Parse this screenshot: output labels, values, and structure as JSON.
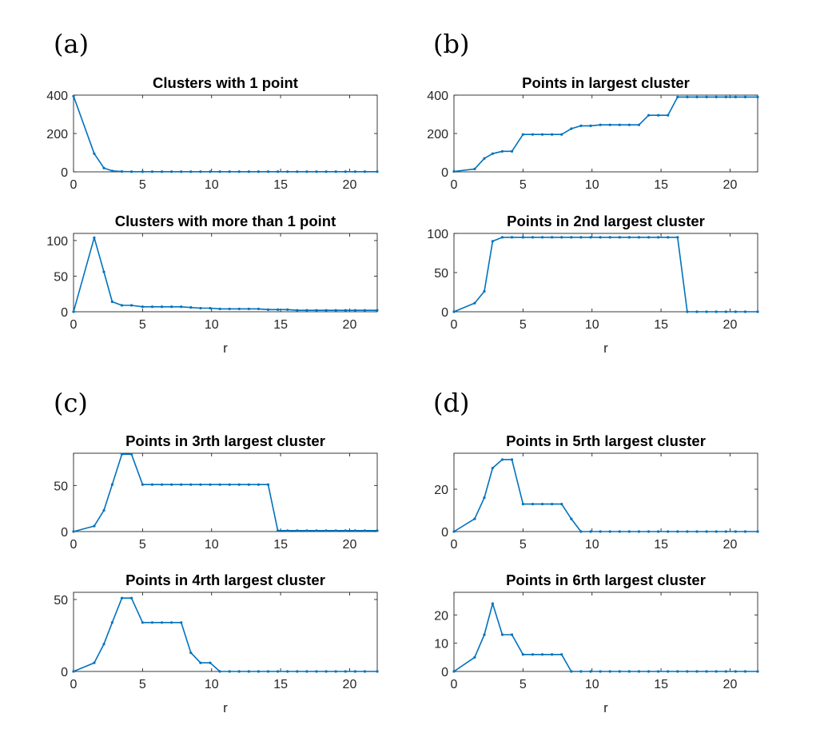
{
  "panel_labels": [
    "(a)",
    "(b)",
    "(c)",
    "(d)"
  ],
  "colors": {
    "series": "#0072BD",
    "axis": "#262626"
  },
  "chart_data": [
    {
      "panel": "(a)",
      "type": "line",
      "title": "Clusters with 1 point",
      "xlabel": "",
      "ylabel": "",
      "xlim": [
        0,
        22
      ],
      "ylim": [
        0,
        400
      ],
      "xticks": [
        0,
        5,
        10,
        15,
        20
      ],
      "yticks": [
        0,
        200,
        400
      ],
      "x": [
        0,
        1.5,
        2.2,
        2.8,
        3.5,
        4.2,
        5,
        5.7,
        6.4,
        7.1,
        7.8,
        8.5,
        9.2,
        9.9,
        10.6,
        11.3,
        12,
        12.7,
        13.4,
        14.1,
        14.8,
        15.5,
        16.2,
        16.9,
        17.6,
        18.3,
        19,
        19.7,
        20.4,
        21.1,
        22
      ],
      "y": [
        395,
        95,
        20,
        5,
        2,
        1,
        1,
        1,
        1,
        1,
        1,
        1,
        1,
        1,
        1,
        1,
        1,
        1,
        1,
        1,
        1,
        1,
        1,
        1,
        1,
        1,
        1,
        1,
        1,
        1,
        1
      ]
    },
    {
      "panel": "(b)",
      "type": "line",
      "title": "Points in largest cluster",
      "xlabel": "",
      "ylabel": "",
      "xlim": [
        0,
        22
      ],
      "ylim": [
        0,
        400
      ],
      "xticks": [
        0,
        5,
        10,
        15,
        20
      ],
      "yticks": [
        0,
        200,
        400
      ],
      "x": [
        0,
        1.5,
        2.2,
        2.8,
        3.5,
        4.2,
        5,
        5.7,
        6.4,
        7.1,
        7.8,
        8.5,
        9.2,
        9.9,
        10.6,
        11.3,
        12,
        12.7,
        13.4,
        14.1,
        14.8,
        15.5,
        16.2,
        16.9,
        17.6,
        18.3,
        19,
        19.7,
        20.4,
        21.1,
        22
      ],
      "y": [
        2,
        15,
        70,
        95,
        107,
        107,
        195,
        195,
        195,
        195,
        195,
        225,
        240,
        240,
        245,
        245,
        245,
        245,
        245,
        295,
        295,
        295,
        390,
        390,
        390,
        390,
        390,
        390,
        390,
        390,
        390
      ]
    },
    {
      "panel": "(a)",
      "type": "line",
      "title": "Clusters with more than 1 point",
      "xlabel": "r",
      "ylabel": "",
      "xlim": [
        0,
        22
      ],
      "ylim": [
        0,
        110
      ],
      "xticks": [
        0,
        5,
        10,
        15,
        20
      ],
      "yticks": [
        0,
        50,
        100
      ],
      "x": [
        0,
        1.5,
        2.2,
        2.8,
        3.5,
        4.2,
        5,
        5.7,
        6.4,
        7.1,
        7.8,
        8.5,
        9.2,
        9.9,
        10.6,
        11.3,
        12,
        12.7,
        13.4,
        14.1,
        14.8,
        15.5,
        16.2,
        16.9,
        17.6,
        18.3,
        19,
        19.7,
        20.4,
        21.1,
        22
      ],
      "y": [
        0,
        104,
        56,
        14,
        9,
        9,
        7,
        7,
        7,
        7,
        7,
        6,
        5,
        5,
        4,
        4,
        4,
        4,
        4,
        3,
        3,
        3,
        2,
        2,
        2,
        2,
        2,
        2,
        2,
        2,
        2
      ]
    },
    {
      "panel": "(b)",
      "type": "line",
      "title": "Points in 2nd largest cluster",
      "xlabel": "r",
      "ylabel": "",
      "xlim": [
        0,
        22
      ],
      "ylim": [
        0,
        100
      ],
      "xticks": [
        0,
        5,
        10,
        15,
        20
      ],
      "yticks": [
        0,
        50,
        100
      ],
      "x": [
        0,
        1.5,
        2.2,
        2.8,
        3.5,
        4.2,
        5,
        5.7,
        6.4,
        7.1,
        7.8,
        8.5,
        9.2,
        9.9,
        10.6,
        11.3,
        12,
        12.7,
        13.4,
        14.1,
        14.8,
        15.5,
        16.2,
        16.9,
        17.6,
        18.3,
        19,
        19.7,
        20.4,
        21.1,
        22
      ],
      "y": [
        0,
        11,
        26,
        90,
        95,
        95,
        95,
        95,
        95,
        95,
        95,
        95,
        95,
        95,
        95,
        95,
        95,
        95,
        95,
        95,
        95,
        95,
        95,
        0,
        0,
        0,
        0,
        0,
        0,
        0,
        0
      ]
    },
    {
      "panel": "(c)",
      "type": "line",
      "title": "Points in 3rth largest cluster",
      "xlabel": "",
      "ylabel": "",
      "xlim": [
        0,
        22
      ],
      "ylim": [
        0,
        85
      ],
      "xticks": [
        0,
        5,
        10,
        15,
        20
      ],
      "yticks": [
        0,
        50
      ],
      "x": [
        0,
        1.5,
        2.2,
        2.8,
        3.5,
        4.2,
        5,
        5.7,
        6.4,
        7.1,
        7.8,
        8.5,
        9.2,
        9.9,
        10.6,
        11.3,
        12,
        12.7,
        13.4,
        14.1,
        14.8,
        15.5,
        16.2,
        16.9,
        17.6,
        18.3,
        19,
        19.7,
        20.4,
        21.1,
        22
      ],
      "y": [
        0,
        6,
        23,
        51,
        84,
        84,
        51,
        51,
        51,
        51,
        51,
        51,
        51,
        51,
        51,
        51,
        51,
        51,
        51,
        51,
        1,
        1,
        1,
        1,
        1,
        1,
        1,
        1,
        1,
        1,
        1
      ]
    },
    {
      "panel": "(d)",
      "type": "line",
      "title": "Points in 5rth largest cluster",
      "xlabel": "",
      "ylabel": "",
      "xlim": [
        0,
        22
      ],
      "ylim": [
        0,
        37
      ],
      "xticks": [
        0,
        5,
        10,
        15,
        20
      ],
      "yticks": [
        0,
        20
      ],
      "x": [
        0,
        1.5,
        2.2,
        2.8,
        3.5,
        4.2,
        5,
        5.7,
        6.4,
        7.1,
        7.8,
        8.5,
        9.2,
        9.9,
        10.6,
        11.3,
        12,
        12.7,
        13.4,
        14.1,
        14.8,
        15.5,
        16.2,
        16.9,
        17.6,
        18.3,
        19,
        19.7,
        20.4,
        21.1,
        22
      ],
      "y": [
        0,
        6,
        16,
        30,
        34,
        34,
        13,
        13,
        13,
        13,
        13,
        6,
        0,
        0,
        0,
        0,
        0,
        0,
        0,
        0,
        0,
        0,
        0,
        0,
        0,
        0,
        0,
        0,
        0,
        0,
        0
      ]
    },
    {
      "panel": "(c)",
      "type": "line",
      "title": "Points in 4rth largest cluster",
      "xlabel": "r",
      "ylabel": "",
      "xlim": [
        0,
        22
      ],
      "ylim": [
        0,
        55
      ],
      "xticks": [
        0,
        5,
        10,
        15,
        20
      ],
      "yticks": [
        0,
        50
      ],
      "x": [
        0,
        1.5,
        2.2,
        2.8,
        3.5,
        4.2,
        5,
        5.7,
        6.4,
        7.1,
        7.8,
        8.5,
        9.2,
        9.9,
        10.6,
        11.3,
        12,
        12.7,
        13.4,
        14.1,
        14.8,
        15.5,
        16.2,
        16.9,
        17.6,
        18.3,
        19,
        19.7,
        20.4,
        21.1,
        22
      ],
      "y": [
        0,
        6,
        19,
        34,
        51,
        51,
        34,
        34,
        34,
        34,
        34,
        13,
        6,
        6,
        0,
        0,
        0,
        0,
        0,
        0,
        0,
        0,
        0,
        0,
        0,
        0,
        0,
        0,
        0,
        0,
        0
      ]
    },
    {
      "panel": "(d)",
      "type": "line",
      "title": "Points in 6rth largest cluster",
      "xlabel": "r",
      "ylabel": "",
      "xlim": [
        0,
        22
      ],
      "ylim": [
        0,
        28
      ],
      "xticks": [
        0,
        5,
        10,
        15,
        20
      ],
      "yticks": [
        0,
        10,
        20
      ],
      "x": [
        0,
        1.5,
        2.2,
        2.8,
        3.5,
        4.2,
        5,
        5.7,
        6.4,
        7.1,
        7.8,
        8.5,
        9.2,
        9.9,
        10.6,
        11.3,
        12,
        12.7,
        13.4,
        14.1,
        14.8,
        15.5,
        16.2,
        16.9,
        17.6,
        18.3,
        19,
        19.7,
        20.4,
        21.1,
        22
      ],
      "y": [
        0,
        5,
        13,
        24,
        13,
        13,
        6,
        6,
        6,
        6,
        6,
        0,
        0,
        0,
        0,
        0,
        0,
        0,
        0,
        0,
        0,
        0,
        0,
        0,
        0,
        0,
        0,
        0,
        0,
        0,
        0
      ]
    }
  ]
}
